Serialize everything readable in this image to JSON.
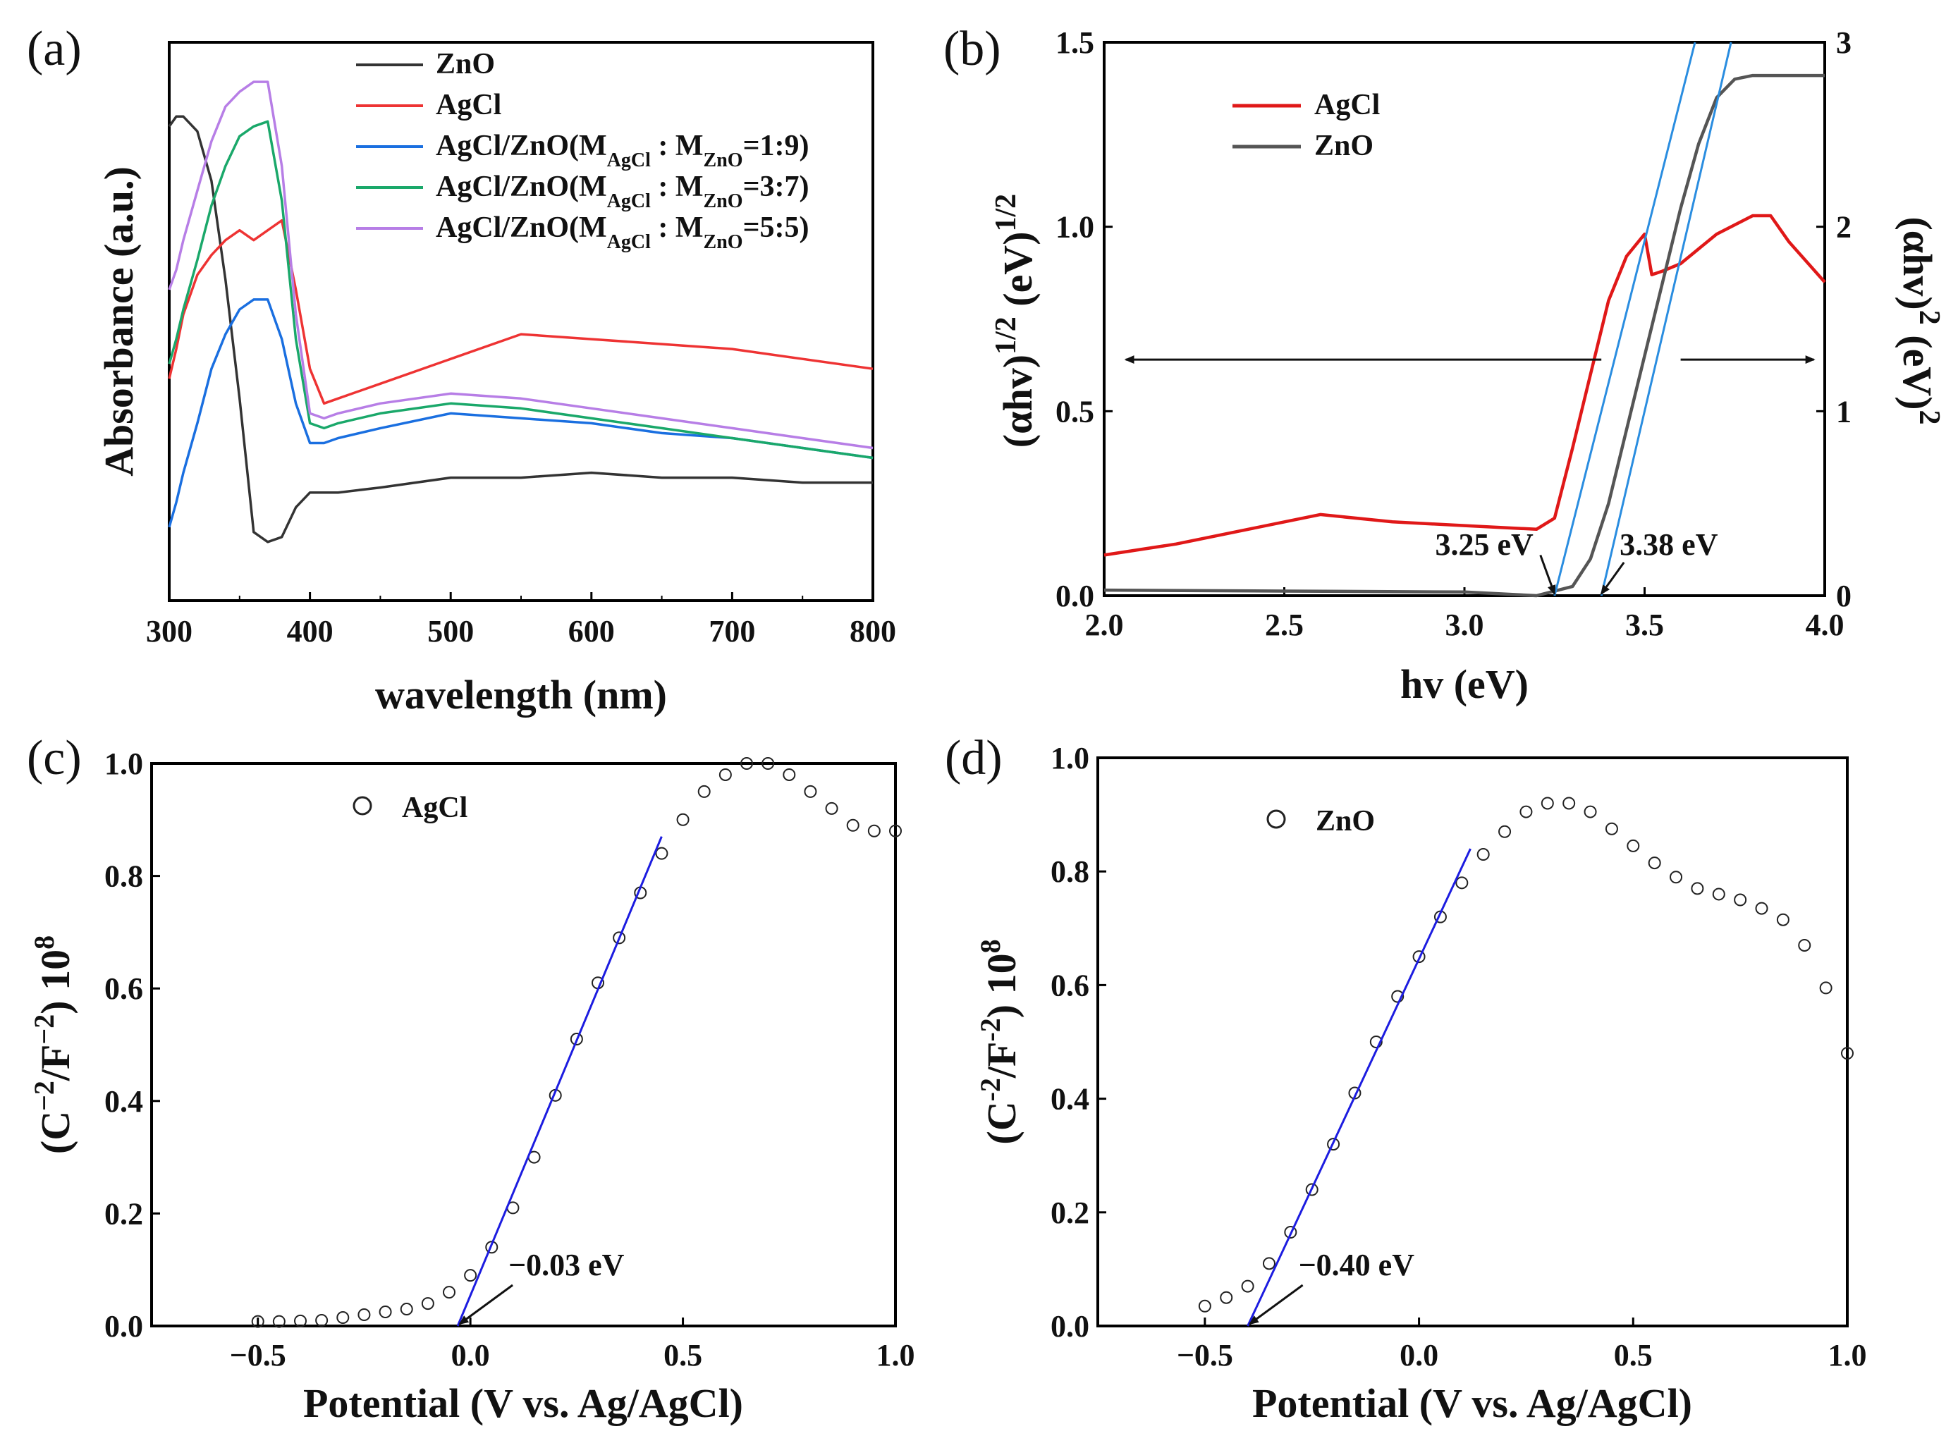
{
  "chart_data": [
    {
      "panel": "(a)",
      "type": "line",
      "xlabel": "wavelength (nm)",
      "ylabel": "Absorbance (a.u.)",
      "xlim": [
        300,
        800
      ],
      "ylim": [
        0,
        1
      ],
      "xticks": [
        "300",
        "400",
        "500",
        "600",
        "700",
        "800"
      ],
      "x": [
        300,
        305,
        310,
        320,
        330,
        340,
        350,
        360,
        370,
        380,
        390,
        400,
        410,
        420,
        450,
        500,
        550,
        600,
        650,
        700,
        750,
        800
      ],
      "series": [
        {
          "name": "ZnO",
          "label_main": "ZnO",
          "color": "#333333",
          "values": [
            0.93,
            0.95,
            0.95,
            0.92,
            0.82,
            0.62,
            0.38,
            0.11,
            0.09,
            0.1,
            0.16,
            0.19,
            0.19,
            0.19,
            0.2,
            0.22,
            0.22,
            0.23,
            0.22,
            0.22,
            0.21,
            0.21
          ]
        },
        {
          "name": "AgCl",
          "label_main": "AgCl",
          "color": "#ee3333",
          "values": [
            0.42,
            0.48,
            0.55,
            0.63,
            0.67,
            0.7,
            0.72,
            0.7,
            0.72,
            0.74,
            0.6,
            0.44,
            0.37,
            0.38,
            0.41,
            0.46,
            0.51,
            0.5,
            0.49,
            0.48,
            0.46,
            0.44
          ]
        },
        {
          "name": "AgCl/ZnO(M_AgCl : M_ZnO=1:9)",
          "label_main": "AgCl/ZnO(M",
          "label_sub1": "AgCl",
          "label_mid": " : M",
          "label_sub2": "ZnO",
          "label_end": "=1:9)",
          "color": "#1a6fe0",
          "values": [
            0.12,
            0.17,
            0.23,
            0.33,
            0.44,
            0.51,
            0.56,
            0.58,
            0.58,
            0.5,
            0.37,
            0.29,
            0.29,
            0.3,
            0.32,
            0.35,
            0.34,
            0.33,
            0.31,
            0.3,
            0.28,
            0.26
          ]
        },
        {
          "name": "AgCl/ZnO(M_AgCl : M_ZnO=3:7)",
          "label_main": "AgCl/ZnO(M",
          "label_sub1": "AgCl",
          "label_mid": " : M",
          "label_sub2": "ZnO",
          "label_end": "=3:7)",
          "color": "#1aa86a",
          "values": [
            0.45,
            0.5,
            0.56,
            0.66,
            0.77,
            0.85,
            0.91,
            0.93,
            0.94,
            0.78,
            0.5,
            0.33,
            0.32,
            0.33,
            0.35,
            0.37,
            0.36,
            0.34,
            0.32,
            0.3,
            0.28,
            0.26
          ]
        },
        {
          "name": "AgCl/ZnO(M_AgCl : M_ZnO=5:5)",
          "label_main": "AgCl/ZnO(M",
          "label_sub1": "AgCl",
          "label_mid": " : M",
          "label_sub2": "ZnO",
          "label_end": "=5:5)",
          "color": "#b77ee6",
          "values": [
            0.6,
            0.64,
            0.7,
            0.8,
            0.9,
            0.97,
            1.0,
            1.02,
            1.02,
            0.85,
            0.55,
            0.35,
            0.34,
            0.35,
            0.37,
            0.39,
            0.38,
            0.36,
            0.34,
            0.32,
            0.3,
            0.28
          ]
        }
      ]
    },
    {
      "panel": "(b)",
      "type": "line",
      "xlabel": "hv (eV)",
      "ylabel_left_base": "(αhv)",
      "ylabel_left_exp1": "1/2",
      "ylabel_left_unit": " (eV)",
      "ylabel_left_exp2": "1/2",
      "ylabel_right_base": "(αhv)",
      "ylabel_right_exp1": "2",
      "ylabel_right_unit": " (eV)",
      "ylabel_right_exp2": "2",
      "xlim": [
        2.0,
        4.0
      ],
      "ylim_left": [
        0,
        1.5
      ],
      "ylim_right": [
        0,
        3
      ],
      "xticks": [
        "2.0",
        "2.5",
        "3.0",
        "3.5",
        "4.0"
      ],
      "yticks_left": [
        "0.0",
        "0.5",
        "1.0",
        "1.5"
      ],
      "yticks_right": [
        "0",
        "1",
        "2",
        "3"
      ],
      "series": [
        {
          "name": "AgCl",
          "color": "#e01818",
          "axis": "left",
          "x": [
            2.0,
            2.2,
            2.4,
            2.6,
            2.8,
            3.0,
            3.1,
            3.2,
            3.25,
            3.3,
            3.35,
            3.4,
            3.45,
            3.5,
            3.52,
            3.55,
            3.6,
            3.7,
            3.8,
            3.85,
            3.9,
            4.0
          ],
          "y": [
            0.11,
            0.14,
            0.18,
            0.22,
            0.2,
            0.19,
            0.185,
            0.18,
            0.21,
            0.4,
            0.6,
            0.8,
            0.92,
            0.98,
            0.87,
            0.88,
            0.9,
            0.98,
            1.03,
            1.03,
            0.96,
            0.85
          ]
        },
        {
          "name": "ZnO",
          "color": "#555555",
          "axis": "right",
          "x": [
            2.0,
            2.5,
            3.0,
            3.2,
            3.3,
            3.35,
            3.4,
            3.45,
            3.5,
            3.55,
            3.6,
            3.65,
            3.7,
            3.75,
            3.8,
            4.0
          ],
          "y": [
            0.03,
            0.025,
            0.02,
            0.0,
            0.05,
            0.2,
            0.5,
            0.9,
            1.3,
            1.7,
            2.1,
            2.45,
            2.7,
            2.8,
            2.82,
            2.82
          ]
        }
      ],
      "fit_lines": [
        {
          "axis": "left",
          "x": [
            3.25,
            3.64
          ],
          "y": [
            0.0,
            1.5
          ],
          "color": "#2a8de0"
        },
        {
          "axis": "right",
          "x": [
            3.38,
            3.74
          ],
          "y": [
            0.0,
            3.0
          ],
          "color": "#2a8de0"
        }
      ],
      "arrows": [
        {
          "from": [
            3.38,
            0.64
          ],
          "to": [
            2.06,
            0.64
          ],
          "axis": "left"
        },
        {
          "from": [
            3.6,
            0.64
          ],
          "to": [
            3.97,
            0.64
          ],
          "axis": "left"
        }
      ],
      "annotations": [
        {
          "text": "3.25 eV",
          "x": 3.25,
          "y": 0.0
        },
        {
          "text": "3.38 eV",
          "x": 3.38,
          "y": 0.0
        }
      ]
    },
    {
      "panel": "(c)",
      "type": "scatter",
      "xlabel": "Potential (V vs. Ag/AgCl)",
      "ylabel_base": "(C",
      "ylabel_exp1": "−2",
      "ylabel_mid": "/F",
      "ylabel_exp2": "−2",
      "ylabel_end": ") 10",
      "ylabel_exp3": "8",
      "xlim": [
        -0.75,
        1.0
      ],
      "ylim": [
        0,
        1.0
      ],
      "xticks": [
        "−0.5",
        "0.0",
        "0.5",
        "1.0"
      ],
      "yticks": [
        "0.0",
        "0.2",
        "0.4",
        "0.6",
        "0.8",
        "1.0"
      ],
      "series": [
        {
          "name": "AgCl",
          "x": [
            -0.5,
            -0.45,
            -0.4,
            -0.35,
            -0.3,
            -0.25,
            -0.2,
            -0.15,
            -0.1,
            -0.05,
            0.0,
            0.05,
            0.1,
            0.15,
            0.2,
            0.25,
            0.3,
            0.35,
            0.4,
            0.45,
            0.5,
            0.55,
            0.6,
            0.65,
            0.7,
            0.75,
            0.8,
            0.85,
            0.9,
            0.95,
            1.0
          ],
          "y": [
            0.008,
            0.008,
            0.009,
            0.01,
            0.015,
            0.02,
            0.025,
            0.03,
            0.04,
            0.06,
            0.09,
            0.14,
            0.21,
            0.3,
            0.41,
            0.51,
            0.61,
            0.69,
            0.77,
            0.84,
            0.9,
            0.95,
            0.98,
            1.0,
            1.0,
            0.98,
            0.95,
            0.92,
            0.89,
            0.88,
            0.88
          ]
        }
      ],
      "fit_line": {
        "x": [
          -0.03,
          0.45
        ],
        "y": [
          0.0,
          0.87
        ],
        "color": "#1c1ce0"
      },
      "annotation": {
        "text": "−0.03 eV",
        "x": -0.03,
        "y": 0.0
      }
    },
    {
      "panel": "(d)",
      "type": "scatter",
      "xlabel": "Potential (V vs. Ag/AgCl)",
      "ylabel_base": "(C",
      "ylabel_exp1": "-2",
      "ylabel_mid": "/F",
      "ylabel_exp2": "-2",
      "ylabel_end": ") 10",
      "ylabel_exp3": "8",
      "xlim": [
        -0.75,
        1.0
      ],
      "ylim": [
        0,
        1.0
      ],
      "xticks": [
        "−0.5",
        "0.0",
        "0.5",
        "1.0"
      ],
      "yticks": [
        "0.0",
        "0.2",
        "0.4",
        "0.6",
        "0.8",
        "1.0"
      ],
      "series": [
        {
          "name": "ZnO",
          "x": [
            -0.5,
            -0.45,
            -0.4,
            -0.35,
            -0.3,
            -0.25,
            -0.2,
            -0.15,
            -0.1,
            -0.05,
            0.0,
            0.05,
            0.1,
            0.15,
            0.2,
            0.25,
            0.3,
            0.35,
            0.4,
            0.45,
            0.5,
            0.55,
            0.6,
            0.65,
            0.7,
            0.75,
            0.8,
            0.85,
            0.9,
            0.95,
            1.0
          ],
          "y": [
            0.035,
            0.05,
            0.07,
            0.11,
            0.165,
            0.24,
            0.32,
            0.41,
            0.5,
            0.58,
            0.65,
            0.72,
            0.78,
            0.83,
            0.87,
            0.905,
            0.92,
            0.92,
            0.905,
            0.875,
            0.845,
            0.815,
            0.79,
            0.77,
            0.76,
            0.75,
            0.735,
            0.715,
            0.67,
            0.595,
            0.48
          ]
        }
      ],
      "fit_line": {
        "x": [
          -0.4,
          0.12
        ],
        "y": [
          0.0,
          0.84
        ],
        "color": "#1c1ce0"
      },
      "annotation": {
        "text": "−0.40 eV",
        "x": -0.4,
        "y": 0.0
      }
    }
  ],
  "panel_labels": {
    "a": "(a)",
    "b": "(b)",
    "c": "(c)",
    "d": "(d)"
  }
}
